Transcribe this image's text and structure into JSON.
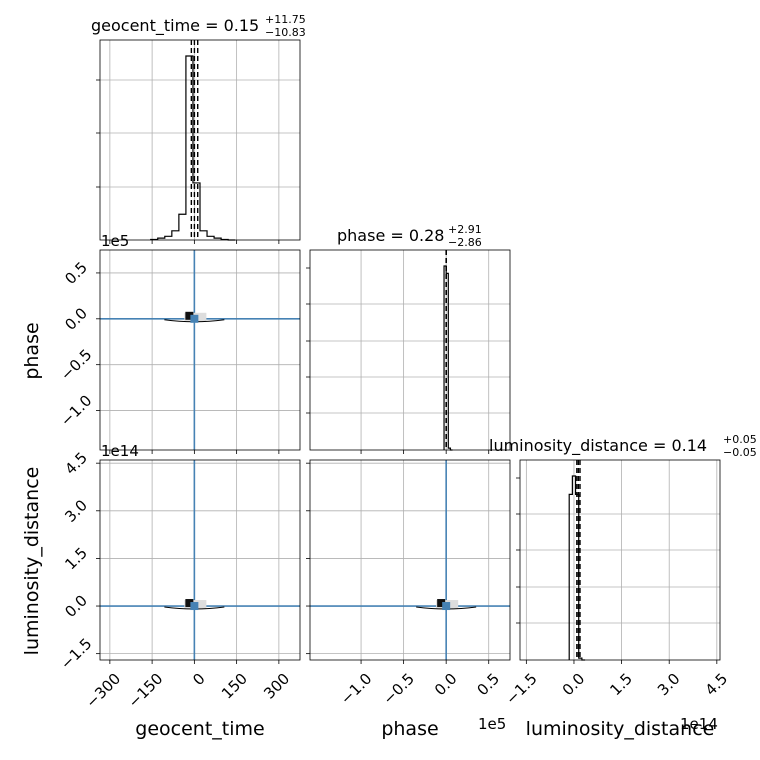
{
  "chart_data": {
    "type": "corner",
    "parameters": [
      "geocent_time",
      "phase",
      "luminosity_distance"
    ],
    "panel_titles": [
      {
        "base": "geocent_time = 0.15",
        "sup": "+11.75",
        "sub": "−10.83"
      },
      {
        "base": "phase = 0.28",
        "sup": "+2.91",
        "sub": "−2.86"
      },
      {
        "base": "luminosity_distance = 0.14",
        "sup": "+0.05",
        "sub": "−0.05"
      }
    ],
    "axis_labels": {
      "x": [
        "geocent_time",
        "phase",
        "luminosity_distance"
      ],
      "y": [
        "phase",
        "luminosity_distance"
      ]
    },
    "offset_labels": {
      "phase_y": "1e5",
      "ld_y": "1e14",
      "phase_x": "1e5",
      "ld_x": "1e14"
    },
    "ticks": {
      "geocent_time": {
        "values": [
          -300,
          -150,
          0,
          150,
          300
        ],
        "labels": [
          "−300",
          "−150",
          "0",
          "150",
          "300"
        ]
      },
      "phase": {
        "values": [
          -1.0,
          -0.5,
          0.0,
          0.5
        ],
        "labels": [
          "−1.0",
          "−0.5",
          "0.0",
          "0.5"
        ]
      },
      "phase_y": {
        "values": [
          0.5,
          0.0,
          -0.5,
          -1.0
        ],
        "labels": [
          "0.5",
          "0.0",
          "−0.5",
          "−1.0"
        ]
      },
      "luminosity_distance": {
        "values": [
          -1.5,
          0.0,
          1.5,
          3.0,
          4.5
        ],
        "labels": [
          "−1.5",
          "0.0",
          "1.5",
          "3.0",
          "4.5"
        ]
      },
      "ld_y": {
        "values": [
          4.5,
          3.0,
          1.5,
          0.0,
          -1.5
        ],
        "labels": [
          "4.5",
          "3.0",
          "1.5",
          "0.0",
          "−1.5"
        ]
      }
    },
    "ranges": {
      "geocent_time": [
        -335,
        375
      ],
      "phase": [
        -1.6,
        0.75
      ],
      "phase_y": [
        -1.43,
        0.75
      ],
      "luminosity_distance": [
        -1.7,
        4.6
      ]
    },
    "truths": {
      "geocent_time": 0,
      "phase": 0,
      "luminosity_distance": 0
    },
    "grid": true,
    "hist_geocent_time": {
      "bin_edges": [
        -155,
        -130,
        -105,
        -80,
        -55,
        -30,
        -5,
        20,
        45,
        70,
        95,
        120,
        145
      ],
      "heights": [
        0.003,
        0.01,
        0.02,
        0.05,
        0.14,
        1.0,
        0.31,
        0.05,
        0.02,
        0.01,
        0.003,
        0
      ],
      "quantile_lines": [
        -10.68,
        0.15,
        11.9
      ]
    },
    "hist_phase": {
      "bin_edges": [
        -0.025,
        0.0,
        0.025,
        0.05,
        0.075
      ],
      "heights": [
        1.0,
        0.96,
        0.01,
        0
      ],
      "quantile_lines": [
        -2.86e-05,
        2.8e-06,
        3.19e-05
      ]
    },
    "hist_luminosity_distance": {
      "bin_edges": [
        -0.15,
        -0.05,
        0.05,
        0.15,
        0.25,
        0.35
      ],
      "heights": [
        0.9,
        1.0,
        0.9,
        0.01,
        0
      ],
      "quantile_lines": [
        0.09,
        0.14,
        0.19
      ]
    }
  }
}
